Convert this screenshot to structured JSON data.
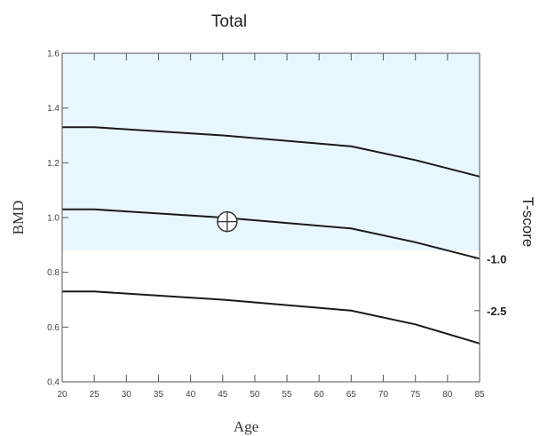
{
  "chart_data": {
    "type": "line",
    "title": "Total",
    "xlabel": "Age",
    "ylabel": "BMD",
    "y2label": "T-score",
    "xlim": [
      20,
      85
    ],
    "ylim": [
      0.4,
      1.6
    ],
    "x_ticks": [
      20,
      25,
      30,
      35,
      40,
      45,
      50,
      55,
      60,
      65,
      70,
      75,
      80,
      85
    ],
    "y_ticks": [
      0.4,
      0.6,
      0.8,
      1.0,
      1.2,
      1.4,
      1.6
    ],
    "y_tick_labels": [
      "0.4",
      "0.6",
      "0.8",
      "1.0",
      "1.2",
      "1.4",
      "1.6"
    ],
    "t_score_markers": [
      {
        "label": "-1.0",
        "y": 0.85
      },
      {
        "label": "-2.5",
        "y": 0.66
      }
    ],
    "shaded_band": {
      "y_min": 0.88,
      "y_max": 1.6,
      "color": "#e8f7fb"
    },
    "grid": false,
    "series": [
      {
        "x": [
          20,
          25,
          45,
          65,
          75,
          85
        ],
        "values": [
          1.33,
          1.33,
          1.3,
          1.26,
          1.21,
          1.15
        ]
      },
      {
        "x": [
          20,
          25,
          45,
          65,
          75,
          85
        ],
        "values": [
          1.03,
          1.03,
          1.0,
          0.96,
          0.91,
          0.85
        ]
      },
      {
        "x": [
          20,
          25,
          45,
          65,
          75,
          85
        ],
        "values": [
          0.73,
          0.73,
          0.7,
          0.66,
          0.61,
          0.54
        ]
      }
    ],
    "patient_point": {
      "x": 45.7,
      "y": 0.985
    }
  }
}
